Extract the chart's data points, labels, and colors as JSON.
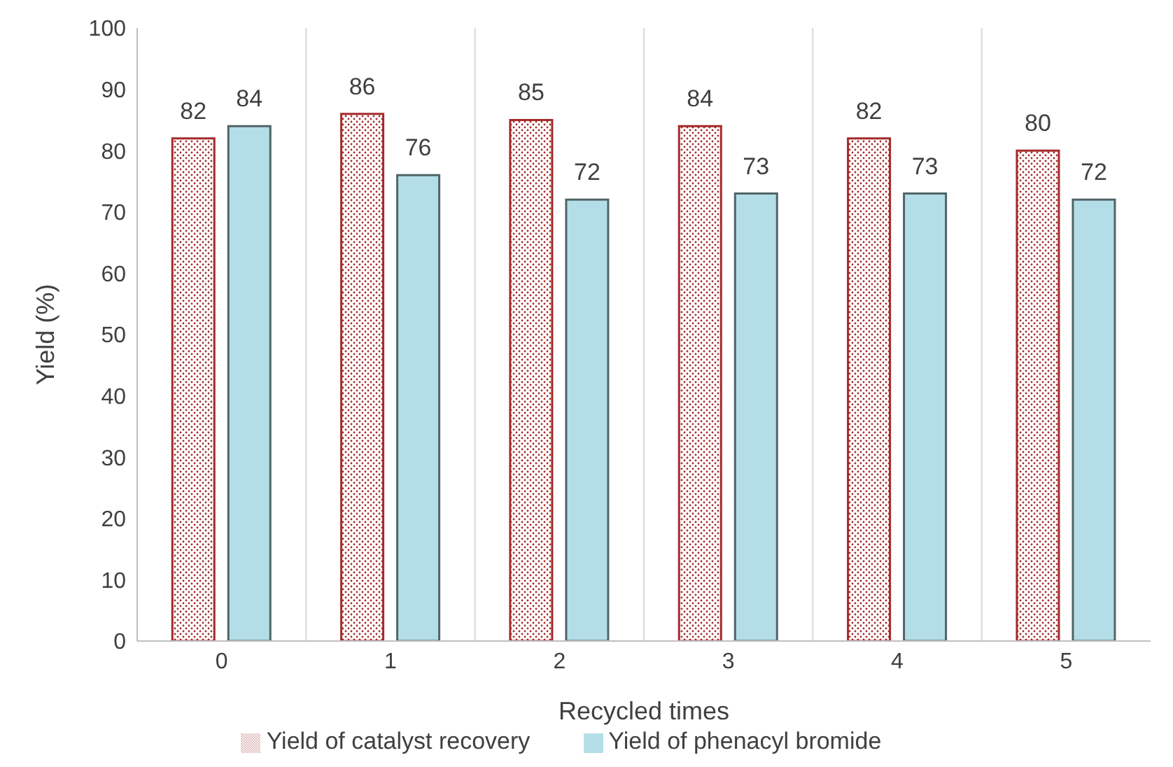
{
  "chart_data": {
    "type": "bar",
    "xlabel": "Recycled times",
    "ylabel": "Yield (%)",
    "categories": [
      "0",
      "1",
      "2",
      "3",
      "4",
      "5"
    ],
    "series": [
      {
        "name": "Yield of catalyst recovery",
        "color": "#a52a2a",
        "values": [
          82,
          86,
          85,
          84,
          82,
          80
        ]
      },
      {
        "name": "Yield of phenacyl bromide",
        "color": "#b4dee7",
        "values": [
          84,
          76,
          72,
          73,
          73,
          72
        ]
      }
    ],
    "ylim": [
      0,
      100
    ],
    "yticks": [
      0,
      10,
      20,
      30,
      40,
      50,
      60,
      70,
      80,
      90,
      100
    ],
    "grid": "x",
    "legend": "bottom",
    "data_labels": true
  }
}
